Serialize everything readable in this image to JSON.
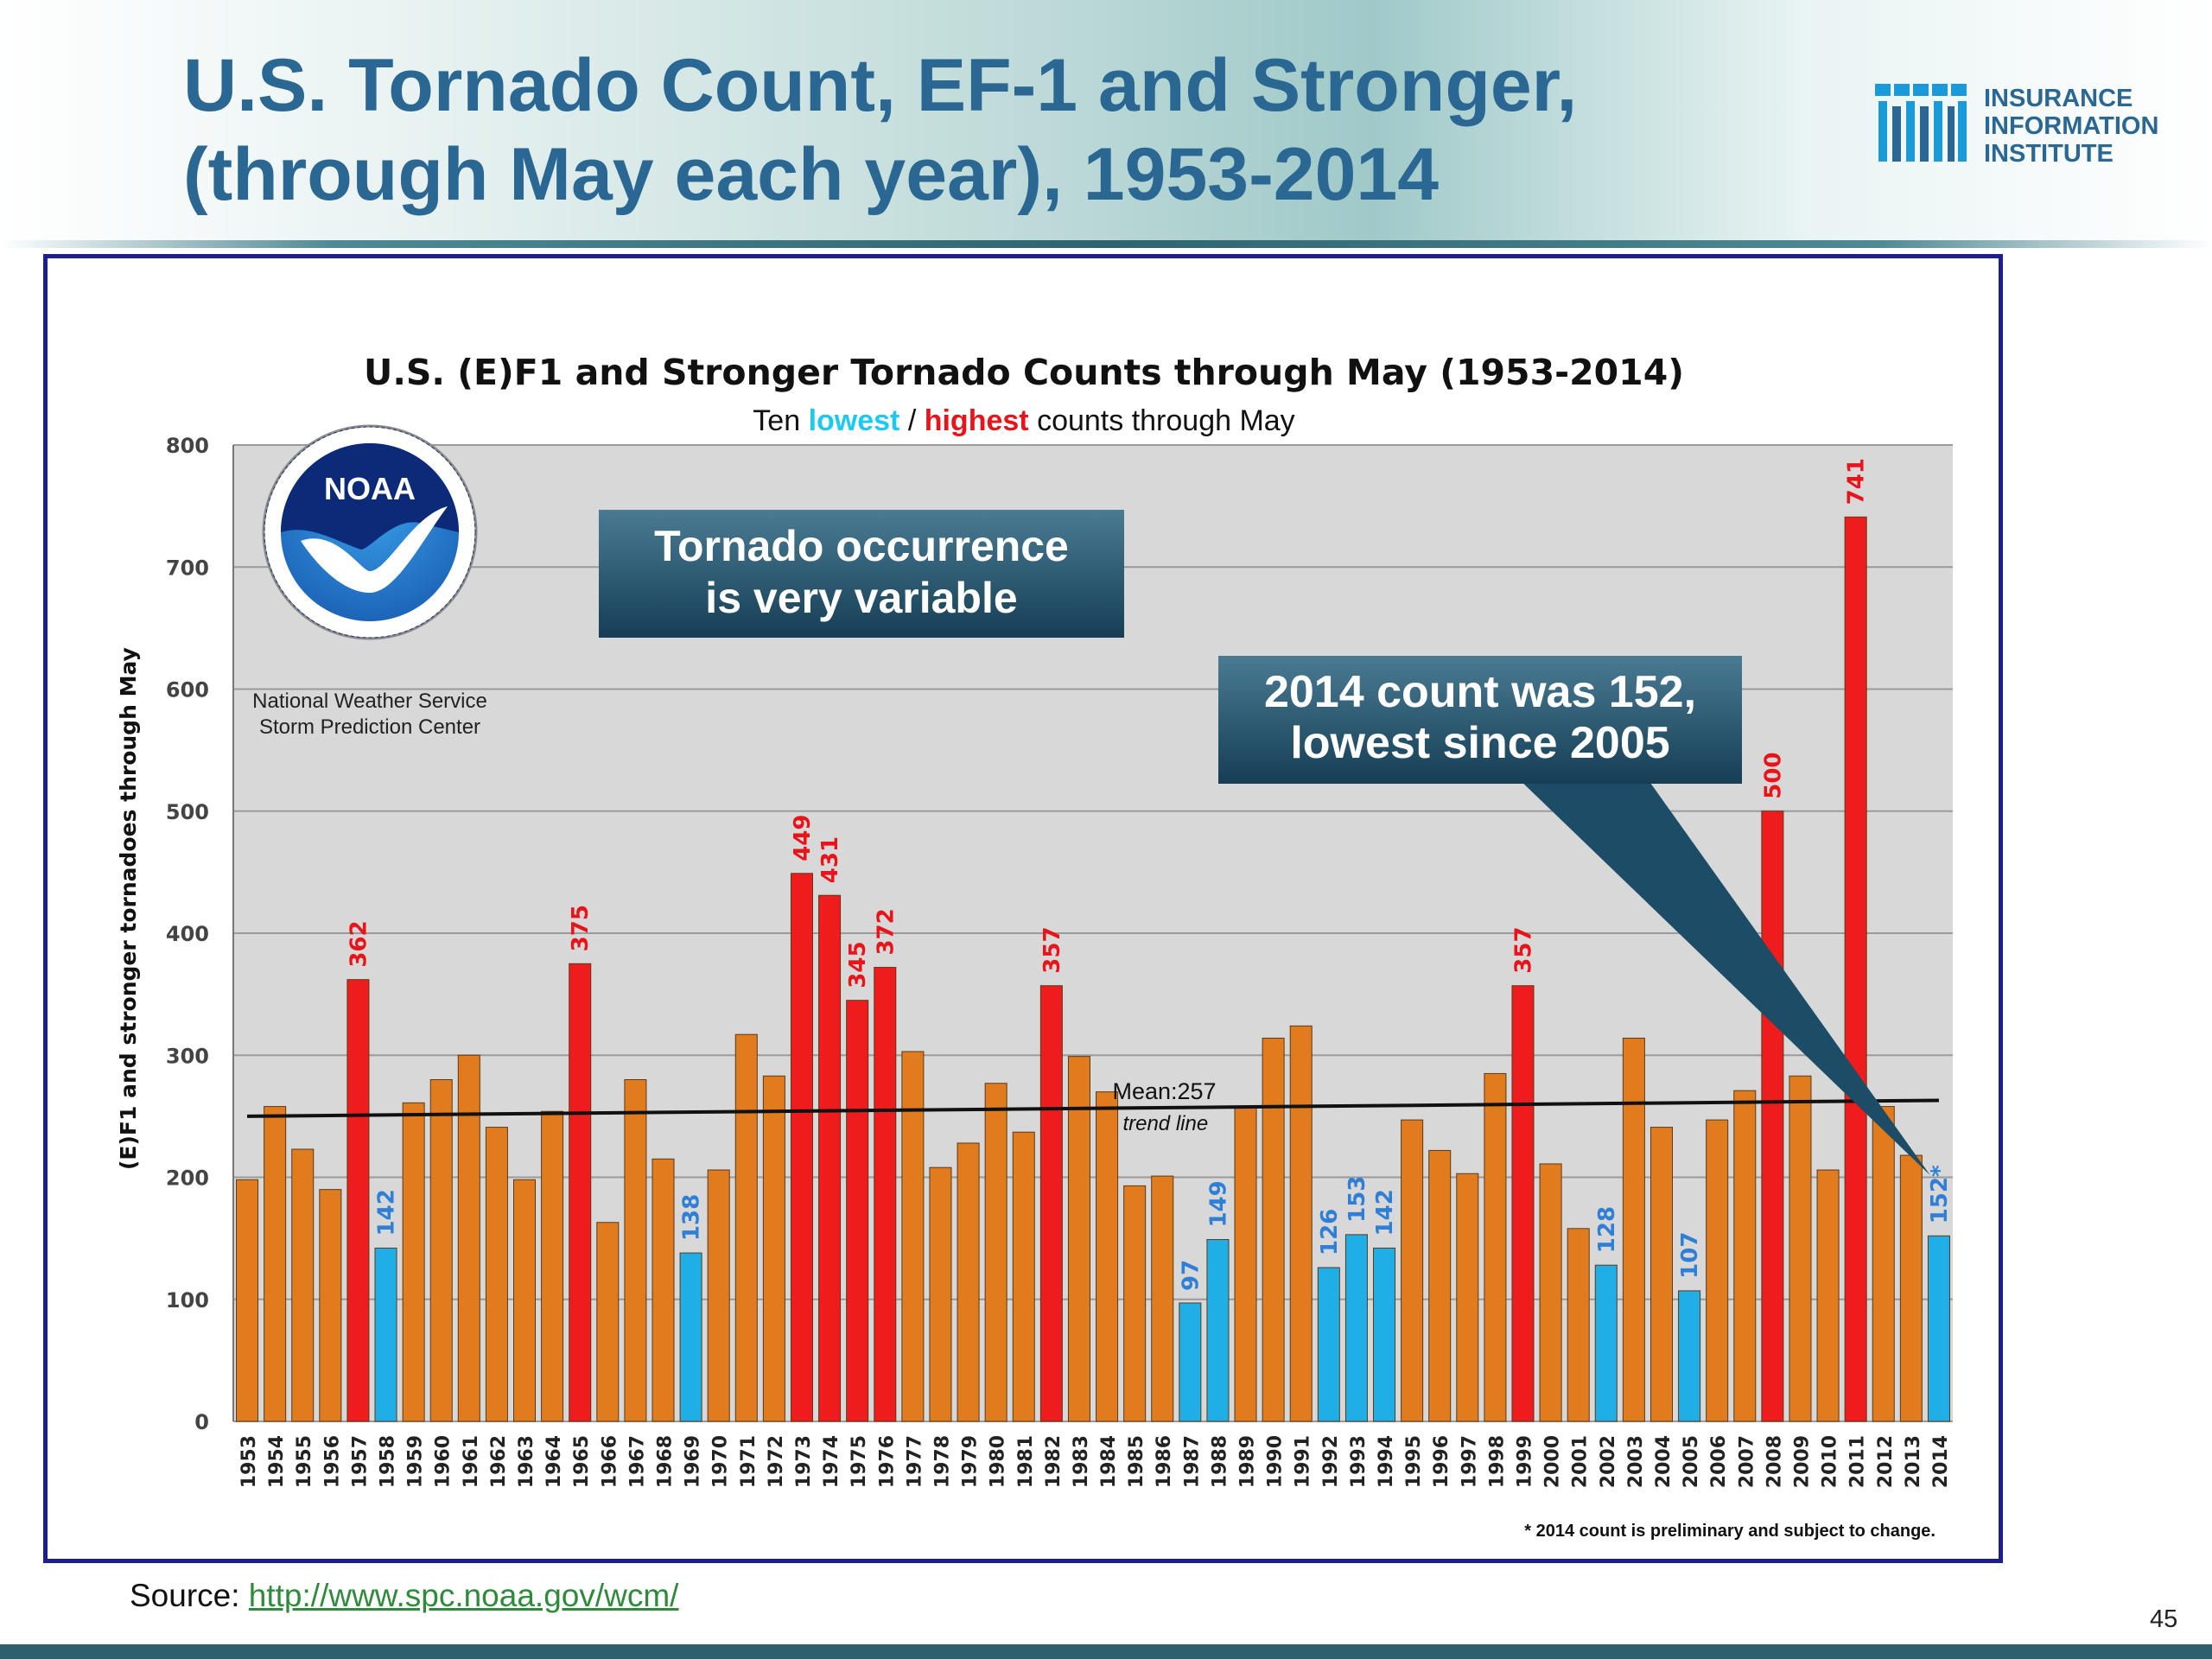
{
  "slide": {
    "title_line1": "U.S. Tornado Count, EF-1 and Stronger,",
    "title_line2": "(through May each year), 1953-2014",
    "logo_lines": [
      "INSURANCE",
      "INFORMATION",
      "INSTITUTE"
    ],
    "source_label": "Source: ",
    "source_link": "http://www.spc.noaa.gov/wcm/",
    "page_number": "45",
    "colors": {
      "title": "#2a6793",
      "frame": "#1c1f8c",
      "link": "#2f8a3c"
    }
  },
  "chart_data": {
    "type": "bar",
    "title": "U.S. (E)F1 and Stronger Tornado Counts through May (1953-2014)",
    "subtitle_parts": [
      "Ten ",
      "lowest",
      " / ",
      "highest",
      " counts through May"
    ],
    "ylabel": "(E)F1 and stronger tornadoes through May",
    "ylim": [
      0,
      800
    ],
    "yticks": [
      0,
      100,
      200,
      300,
      400,
      500,
      600,
      700,
      800
    ],
    "grid": true,
    "categories": [
      "1953",
      "1954",
      "1955",
      "1956",
      "1957",
      "1958",
      "1959",
      "1960",
      "1961",
      "1962",
      "1963",
      "1964",
      "1965",
      "1966",
      "1967",
      "1968",
      "1969",
      "1970",
      "1971",
      "1972",
      "1973",
      "1974",
      "1975",
      "1976",
      "1977",
      "1978",
      "1979",
      "1980",
      "1981",
      "1982",
      "1983",
      "1984",
      "1985",
      "1986",
      "1987",
      "1988",
      "1989",
      "1990",
      "1991",
      "1992",
      "1993",
      "1994",
      "1995",
      "1996",
      "1997",
      "1998",
      "1999",
      "2000",
      "2001",
      "2002",
      "2003",
      "2004",
      "2005",
      "2006",
      "2007",
      "2008",
      "2009",
      "2010",
      "2011",
      "2012",
      "2013",
      "2014"
    ],
    "values": [
      198,
      258,
      223,
      190,
      362,
      142,
      261,
      280,
      300,
      241,
      198,
      254,
      375,
      163,
      280,
      215,
      138,
      206,
      317,
      283,
      449,
      431,
      345,
      372,
      303,
      208,
      228,
      277,
      237,
      357,
      299,
      270,
      193,
      201,
      97,
      149,
      257,
      314,
      324,
      126,
      153,
      142,
      247,
      222,
      203,
      285,
      357,
      211,
      158,
      128,
      314,
      241,
      107,
      247,
      271,
      500,
      283,
      206,
      741,
      258,
      218,
      152
    ],
    "classes": [
      "n",
      "n",
      "n",
      "n",
      "h",
      "l",
      "n",
      "n",
      "n",
      "n",
      "n",
      "n",
      "h",
      "n",
      "n",
      "n",
      "l",
      "n",
      "n",
      "n",
      "h",
      "h",
      "h",
      "h",
      "n",
      "n",
      "n",
      "n",
      "n",
      "h",
      "n",
      "n",
      "n",
      "n",
      "l",
      "l",
      "n",
      "n",
      "n",
      "l",
      "l",
      "l",
      "n",
      "n",
      "n",
      "n",
      "h",
      "n",
      "n",
      "l",
      "n",
      "n",
      "l",
      "n",
      "n",
      "h",
      "n",
      "n",
      "h",
      "n",
      "n",
      "l"
    ],
    "value_labels": {
      "1957": "362",
      "1958": "142",
      "1965": "375",
      "1969": "138",
      "1973": "449",
      "1974": "431",
      "1975": "345",
      "1976": "372",
      "1982": "357",
      "1987": "97",
      "1988": "149",
      "1992": "126",
      "1993": "153",
      "1994": "142",
      "1999": "357",
      "2002": "128",
      "2005": "107",
      "2008": "500",
      "2011": "741",
      "2014": "152*"
    },
    "colors": {
      "normal": "#e07b1e",
      "lowest": "#1faee6",
      "highest": "#ee1c1c",
      "plot_bg": "#d8d8d8",
      "lowest_text": "#1ec8f0",
      "highest_text": "#e8141a"
    },
    "trend_line": {
      "start": 250,
      "end": 263,
      "label_1": "Mean:257",
      "label_2": "trend line"
    },
    "callout_1": {
      "lines": [
        "Tornado occurrence",
        "is very variable"
      ]
    },
    "callout_2": {
      "lines": [
        "2014 count was 152,",
        "lowest since 2005"
      ],
      "points_to": "2014"
    },
    "logo": {
      "name": "NOAA",
      "lines": [
        "National Weather Service",
        "Storm Prediction Center"
      ]
    },
    "footnote": "* 2014 count is preliminary and subject to change."
  }
}
